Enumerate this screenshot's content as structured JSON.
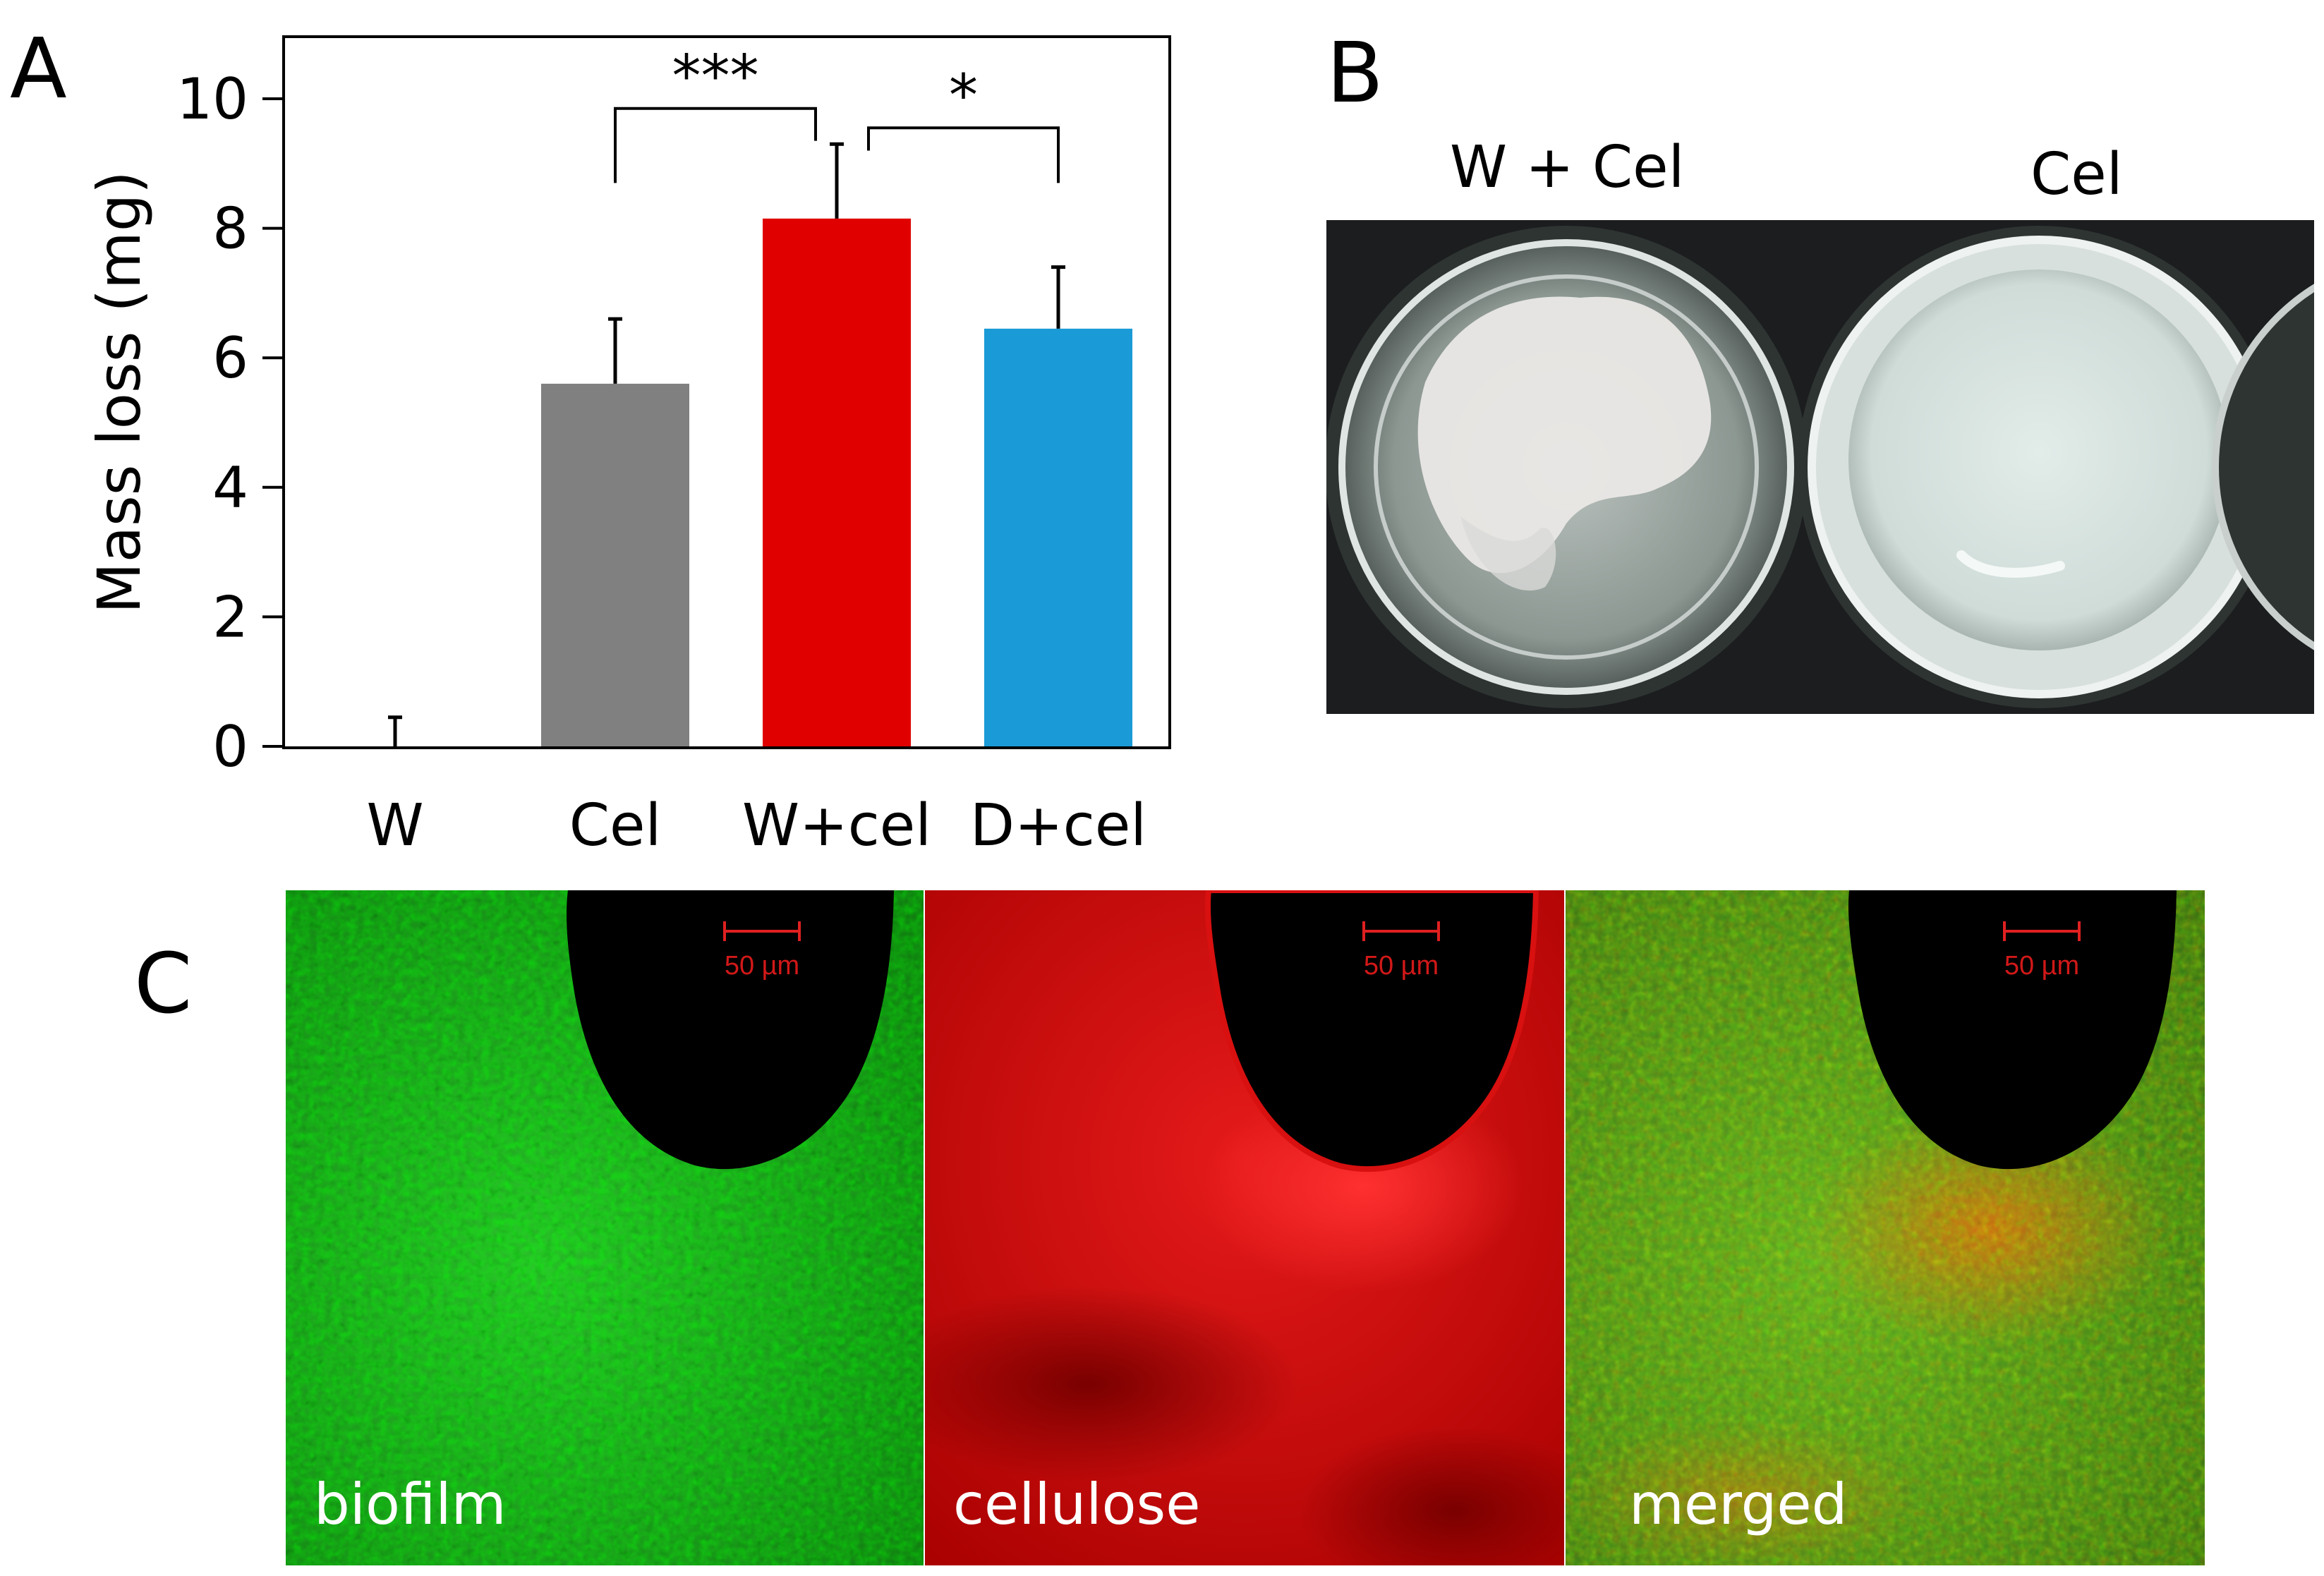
{
  "panels": {
    "a": {
      "letter": "A"
    },
    "b": {
      "letter": "B",
      "labels": [
        "W + Cel",
        "Cel"
      ]
    },
    "c": {
      "letter": "C",
      "scale_text": "50 µm",
      "captions": [
        "biofilm",
        "cellulose",
        "merged"
      ]
    }
  },
  "chart_data": {
    "type": "bar",
    "categories": [
      "W",
      "Cel",
      "W+cel",
      "D+cel"
    ],
    "values": [
      0,
      5.6,
      8.15,
      6.45
    ],
    "errors": [
      0.45,
      1.0,
      1.15,
      0.95
    ],
    "colors": [
      "#8a8a8a",
      "#808080",
      "#e00000",
      "#1a9ad6"
    ],
    "ylabel": "Mass loss (mg)",
    "ylim": [
      0,
      11
    ],
    "yticks": [
      "0",
      "2",
      "4",
      "6",
      "8",
      "10"
    ],
    "significance": [
      {
        "from": "Cel",
        "to": "W+cel",
        "label": "***"
      },
      {
        "from": "W+cel",
        "to": "D+cel",
        "label": "*"
      }
    ],
    "grid": false,
    "legend": "none"
  }
}
